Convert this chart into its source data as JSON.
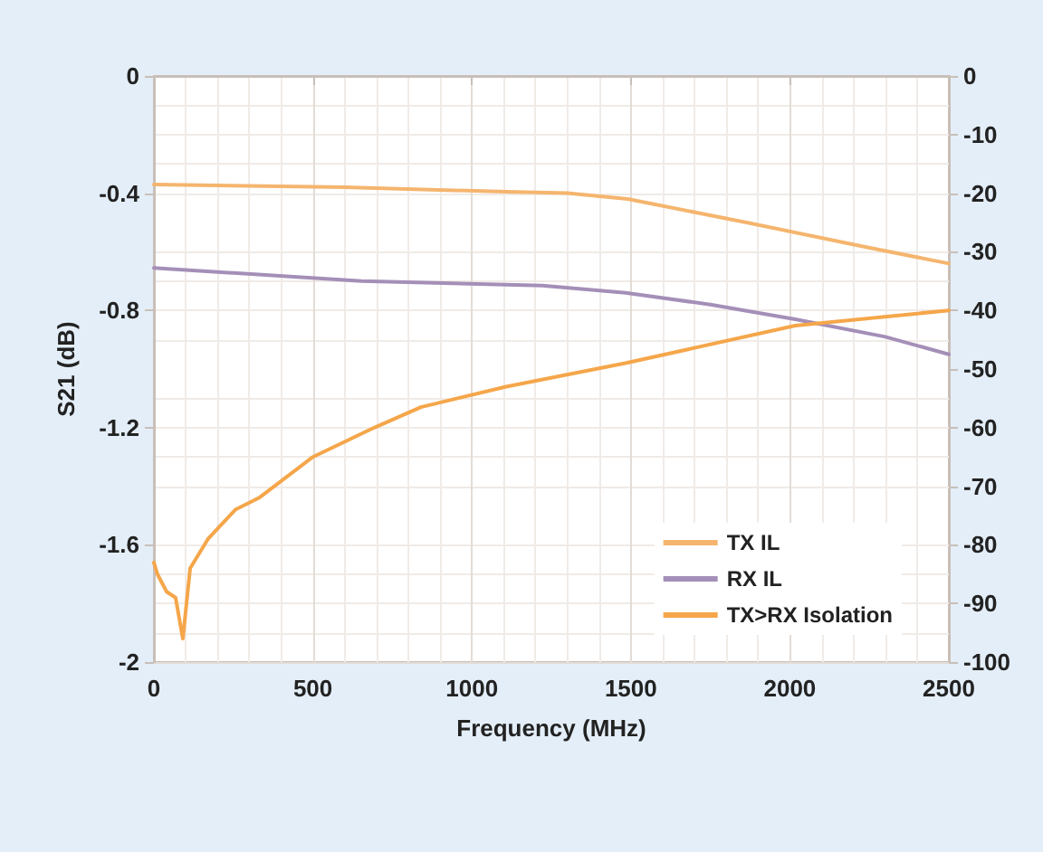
{
  "chart_data": {
    "type": "line",
    "xlabel": "Frequency (MHz)",
    "ylabel": "S21 (dB)",
    "xlim": [
      0,
      2500
    ],
    "xticks": [
      0,
      500,
      1000,
      1500,
      2000,
      2500
    ],
    "ylim": [
      -2,
      0
    ],
    "yticks": [
      -2,
      -1.6,
      -1.2,
      -0.8,
      -0.4,
      0
    ],
    "y2lim": [
      -100,
      0
    ],
    "y2ticks": [
      -100,
      -90,
      -80,
      -70,
      -60,
      -50,
      -40,
      -30,
      -20,
      -10,
      0
    ],
    "grid": true,
    "legend": "bottom right",
    "marker": "none",
    "line_style": "solid",
    "series": [
      {
        "name": "TX IL",
        "color": "#f5b56e",
        "x": [
          0,
          600,
          1108,
          1300,
          1490,
          1864,
          2244,
          2500
        ],
        "values": [
          -0.37,
          -0.38,
          -0.395,
          -0.4,
          -0.42,
          -0.5,
          -0.585,
          -0.64
        ]
      },
      {
        "name": "RX IL",
        "color": "#a48fb8",
        "x": [
          0,
          653,
          1222,
          1483,
          1750,
          2017,
          2300,
          2500
        ],
        "values": [
          -0.655,
          -0.7,
          -0.715,
          -0.74,
          -0.78,
          -0.83,
          -0.89,
          -0.95
        ]
      },
      {
        "name": "TX>RX Isolation",
        "color": "#f5a64a",
        "axis": "y2",
        "x": [
          0,
          11,
          40,
          68,
          91,
          114,
          170,
          256,
          330,
          500,
          693,
          840,
          1108,
          1483,
          2017,
          2500
        ],
        "values": [
          -83,
          -85,
          -88,
          -89,
          -96,
          -84,
          -79,
          -74,
          -72,
          -65,
          -60,
          -56.5,
          -53,
          -49,
          -42.6,
          -40
        ]
      }
    ]
  }
}
